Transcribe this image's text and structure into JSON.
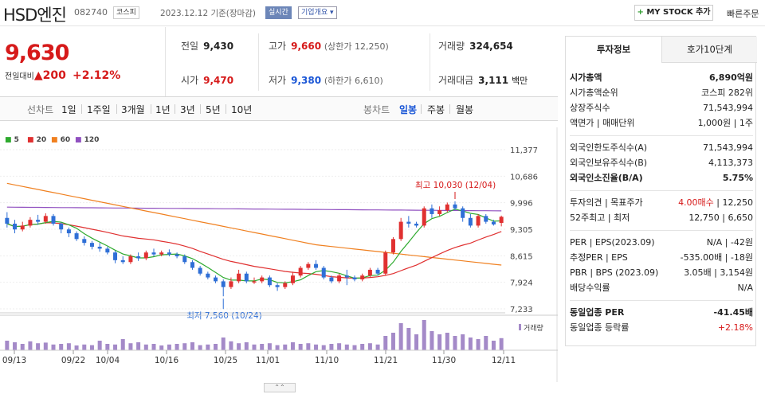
{
  "header": {
    "name": "HSD엔진",
    "code": "082740",
    "market": "코스피",
    "date": "2023.12.12 기준(장마감)",
    "live": "실시간",
    "overview": "기업개요",
    "my_stock": "MY STOCK 추가",
    "fast_order": "빠른주문"
  },
  "price": {
    "current": "9,630",
    "change_label": "전일대비",
    "change_arrow": "▲",
    "change": "200",
    "change_pct": "+2.12%"
  },
  "stats": {
    "prev_label": "전일",
    "prev": "9,430",
    "high_label": "고가",
    "high": "9,660",
    "high_sub": "(상한가 12,250)",
    "volume_label": "거래량",
    "volume": "324,654",
    "open_label": "시가",
    "open": "9,470",
    "low_label": "저가",
    "low": "9,380",
    "low_sub": "(하한가 6,610)",
    "amount_label": "거래대금",
    "amount": "3,111",
    "amount_unit": "백만"
  },
  "tabs": {
    "line_label": "선차트",
    "periods": [
      "1일",
      "1주일",
      "3개월",
      "1년",
      "3년",
      "5년",
      "10년"
    ],
    "candle_label": "봉차트",
    "candle": [
      "일봉",
      "주봉",
      "월봉"
    ]
  },
  "legend": [
    {
      "label": "5",
      "color": "#2eaa2e"
    },
    {
      "label": "20",
      "color": "#e03030"
    },
    {
      "label": "60",
      "color": "#f08020"
    },
    {
      "label": "120",
      "color": "#9050c0"
    }
  ],
  "chart_data": {
    "type": "candlestick",
    "y_ticks": [
      "11,377",
      "10,686",
      "9,996",
      "9,305",
      "8,615",
      "7,924",
      "7,233"
    ],
    "ylim": [
      7233,
      11377
    ],
    "x_labels": [
      "09/13",
      "09/22",
      "10/04",
      "10/16",
      "10/25",
      "11/01",
      "11/10",
      "11/21",
      "11/30",
      "12/11"
    ],
    "high_note": "최고 10,030 (12/04)",
    "low_note": "최저 7,560 (10/24)",
    "volume_label": "거래량",
    "candles": [
      [
        9600,
        9450,
        9750,
        9350
      ],
      [
        9450,
        9300,
        9550,
        9200
      ],
      [
        9300,
        9400,
        9500,
        9250
      ],
      [
        9400,
        9550,
        9620,
        9350
      ],
      [
        9550,
        9500,
        9680,
        9420
      ],
      [
        9500,
        9650,
        9720,
        9450
      ],
      [
        9650,
        9450,
        9700,
        9400
      ],
      [
        9450,
        9300,
        9480,
        9200
      ],
      [
        9300,
        9200,
        9350,
        9100
      ],
      [
        9200,
        9050,
        9250,
        9000
      ],
      [
        9050,
        8950,
        9120,
        8880
      ],
      [
        8950,
        8850,
        9000,
        8780
      ],
      [
        8850,
        8800,
        8950,
        8720
      ],
      [
        8800,
        8700,
        8850,
        8650
      ],
      [
        8700,
        8500,
        8750,
        8420
      ],
      [
        8500,
        8450,
        8600,
        8400
      ],
      [
        8450,
        8600,
        8650,
        8400
      ],
      [
        8600,
        8550,
        8700,
        8480
      ],
      [
        8550,
        8700,
        8750,
        8500
      ],
      [
        8700,
        8650,
        8800,
        8600
      ],
      [
        8650,
        8700,
        8750,
        8600
      ],
      [
        8700,
        8650,
        8780,
        8600
      ],
      [
        8650,
        8600,
        8700,
        8550
      ],
      [
        8600,
        8450,
        8650,
        8400
      ],
      [
        8450,
        8300,
        8500,
        8250
      ],
      [
        8300,
        8150,
        8350,
        8100
      ],
      [
        8150,
        8050,
        8200,
        8000
      ],
      [
        8050,
        7950,
        8100,
        7900
      ],
      [
        7950,
        7800,
        8000,
        7560
      ],
      [
        7800,
        7950,
        8050,
        7750
      ],
      [
        7950,
        8150,
        8250,
        7900
      ],
      [
        8150,
        7950,
        8200,
        7900
      ],
      [
        7950,
        7950,
        8050,
        7880
      ],
      [
        7950,
        8050,
        8100,
        7900
      ],
      [
        8050,
        7850,
        8100,
        7800
      ],
      [
        7850,
        7800,
        7900,
        7700
      ],
      [
        7800,
        7900,
        7950,
        7750
      ],
      [
        7900,
        8100,
        8200,
        7850
      ],
      [
        8100,
        8300,
        8350,
        8050
      ],
      [
        8300,
        8400,
        8450,
        8250
      ],
      [
        8400,
        8300,
        8500,
        8250
      ],
      [
        8300,
        8050,
        8350,
        8000
      ],
      [
        8050,
        7950,
        8100,
        7900
      ],
      [
        7950,
        8100,
        8150,
        7900
      ],
      [
        8100,
        8050,
        8250,
        7850
      ],
      [
        8050,
        8000,
        8100,
        7950
      ],
      [
        8000,
        8100,
        8150,
        7950
      ],
      [
        8100,
        8250,
        8300,
        8050
      ],
      [
        8250,
        8150,
        8300,
        8100
      ],
      [
        8150,
        8700,
        8750,
        8100
      ],
      [
        8700,
        9050,
        9100,
        8650
      ],
      [
        9050,
        9500,
        9600,
        9000
      ],
      [
        9500,
        9450,
        9650,
        9350
      ],
      [
        9450,
        9400,
        9500,
        9350
      ],
      [
        9400,
        9850,
        9900,
        9350
      ],
      [
        9850,
        9700,
        9950,
        9600
      ],
      [
        9700,
        9800,
        9900,
        9650
      ],
      [
        9800,
        9950,
        10000,
        9750
      ],
      [
        9950,
        9850,
        10030,
        9800
      ],
      [
        9850,
        9600,
        9900,
        9500
      ],
      [
        9600,
        9400,
        9700,
        9350
      ],
      [
        9400,
        9650,
        9700,
        9350
      ],
      [
        9650,
        9500,
        9700,
        9450
      ],
      [
        9500,
        9430,
        9550,
        9400
      ],
      [
        9470,
        9630,
        9660,
        9380
      ]
    ],
    "volumes": [
      30,
      25,
      20,
      28,
      22,
      24,
      18,
      20,
      22,
      15,
      18,
      16,
      30,
      20,
      18,
      35,
      22,
      25,
      18,
      20,
      15,
      18,
      20,
      22,
      25,
      16,
      18,
      20,
      40,
      28,
      22,
      25,
      18,
      20,
      22,
      16,
      18,
      25,
      20,
      22,
      18,
      16,
      20,
      22,
      18,
      16,
      20,
      22,
      18,
      45,
      55,
      85,
      70,
      50,
      95,
      60,
      50,
      55,
      45,
      50,
      40,
      35,
      45,
      30,
      38
    ]
  },
  "info": {
    "tab1": "투자정보",
    "tab2": "호가10단계",
    "rows1": [
      [
        "시가총액",
        "6,890억원"
      ],
      [
        "시가총액순위",
        "코스피 282위"
      ],
      [
        "상장주식수",
        "71,543,994"
      ],
      [
        "액면가 | 매매단위",
        "1,000원 | 1주"
      ]
    ],
    "rows2": [
      [
        "외국인한도주식수(A)",
        "71,543,994"
      ],
      [
        "외국인보유주식수(B)",
        "4,113,373"
      ],
      [
        "외국인소진율(B/A)",
        "5.75%"
      ]
    ],
    "rows3": [
      [
        "투자의견 | 목표주가",
        "4.00매수 | 12,250"
      ],
      [
        "52주최고 | 최저",
        "12,750 | 6,650"
      ]
    ],
    "rows4": [
      [
        "PER | EPS(2023.09)",
        "N/A | -42원"
      ],
      [
        "추정PER | EPS",
        "-535.00배 | -18원"
      ],
      [
        "PBR | BPS (2023.09)",
        "3.05배 | 3,154원"
      ],
      [
        "배당수익률",
        "N/A"
      ]
    ],
    "rows5": [
      [
        "동일업종 PER",
        "-41.45배"
      ],
      [
        "동일업종 등락률",
        "+2.18%"
      ]
    ]
  }
}
